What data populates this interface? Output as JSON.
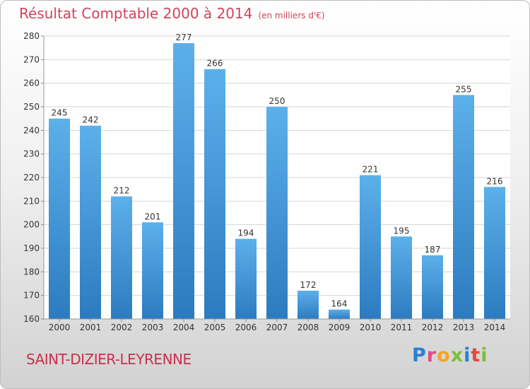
{
  "header": {
    "title": "Résultat Comptable 2000 à 2014",
    "unit": "(en milliers d'€)"
  },
  "footer": {
    "commune": "SAINT-DIZIER-LEYRENNE",
    "logo": "Proxiti",
    "logo_letters": [
      {
        "ch": "P",
        "color": "#2a7fd1"
      },
      {
        "ch": "r",
        "color": "#e04b8a"
      },
      {
        "ch": "o",
        "color": "#f5a623"
      },
      {
        "ch": "x",
        "color": "#7bbf3a"
      },
      {
        "ch": "i",
        "color": "#2a7fd1"
      },
      {
        "ch": "t",
        "color": "#e04b3a"
      },
      {
        "ch": "i",
        "color": "#7bbf3a"
      }
    ]
  },
  "colors": {
    "title": "#d1435b",
    "bar_light": "#5cb0ea",
    "bar_dark": "#2c7bc0",
    "grid": "#d6d6d6"
  },
  "chart_data": {
    "type": "bar",
    "categories": [
      "2000",
      "2001",
      "2002",
      "2003",
      "2004",
      "2005",
      "2006",
      "2007",
      "2008",
      "2009",
      "2010",
      "2011",
      "2012",
      "2013",
      "2014"
    ],
    "values": [
      245,
      242,
      212,
      201,
      277,
      266,
      194,
      250,
      172,
      164,
      221,
      195,
      187,
      255,
      216
    ],
    "ylim": [
      160,
      280
    ],
    "yticks": [
      160,
      170,
      180,
      190,
      200,
      210,
      220,
      230,
      240,
      250,
      260,
      270,
      280
    ],
    "grid": true,
    "data_labels": true
  }
}
